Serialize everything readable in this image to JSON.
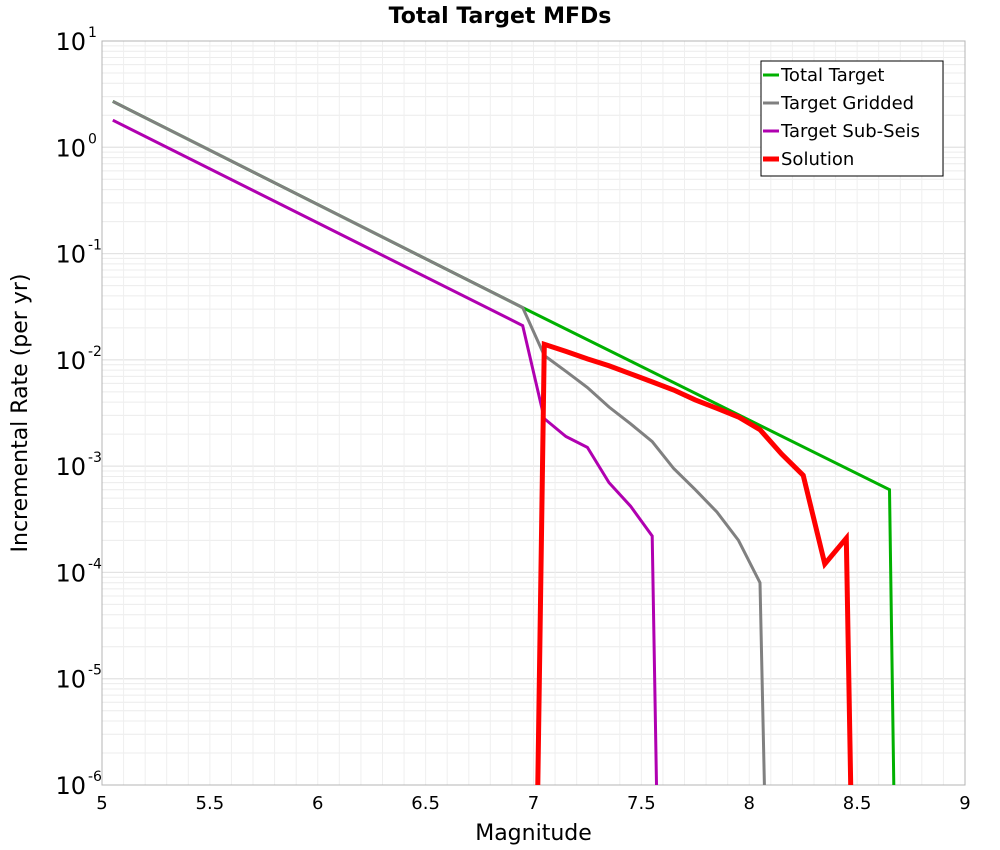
{
  "chart_data": {
    "type": "line",
    "title": "Total Target MFDs",
    "xlabel": "Magnitude",
    "ylabel": "Incremental Rate (per yr)",
    "xlim": [
      5,
      9
    ],
    "ylim": [
      1e-06,
      10
    ],
    "yscale": "log",
    "grid": true,
    "legend_position": "top-right",
    "xticks": [
      "5",
      "5.5",
      "6",
      "6.5",
      "7",
      "7.5",
      "8",
      "8.5",
      "9"
    ],
    "yticks": [
      {
        "base": "10",
        "exp": "1"
      },
      {
        "base": "10",
        "exp": "0"
      },
      {
        "base": "10",
        "exp": "-1"
      },
      {
        "base": "10",
        "exp": "-2"
      },
      {
        "base": "10",
        "exp": "-3"
      },
      {
        "base": "10",
        "exp": "-4"
      },
      {
        "base": "10",
        "exp": "-5"
      },
      {
        "base": "10",
        "exp": "-6"
      }
    ],
    "series": [
      {
        "name": "Total Target",
        "color": "#00b000",
        "points": [
          [
            5.05,
            2.7
          ],
          [
            6.95,
            0.031
          ],
          [
            8.65,
            0.0006
          ],
          [
            8.67,
            1e-06
          ]
        ]
      },
      {
        "name": "Target Gridded",
        "color": "#808080",
        "points": [
          [
            5.05,
            2.7
          ],
          [
            6.95,
            0.031
          ],
          [
            7.05,
            0.011
          ],
          [
            7.15,
            0.0078
          ],
          [
            7.25,
            0.0055
          ],
          [
            7.35,
            0.0036
          ],
          [
            7.45,
            0.0025
          ],
          [
            7.55,
            0.0017
          ],
          [
            7.65,
            0.00095
          ],
          [
            7.75,
            0.0006
          ],
          [
            7.85,
            0.00037
          ],
          [
            7.95,
            0.0002
          ],
          [
            8.05,
            8e-05
          ],
          [
            8.07,
            1e-06
          ]
        ]
      },
      {
        "name": "Target Sub-Seis",
        "color": "#b000b0",
        "points": [
          [
            5.05,
            1.8
          ],
          [
            6.95,
            0.021
          ],
          [
            7.05,
            0.0028
          ],
          [
            7.15,
            0.0019
          ],
          [
            7.25,
            0.0015
          ],
          [
            7.35,
            0.0007
          ],
          [
            7.45,
            0.00042
          ],
          [
            7.55,
            0.00022
          ],
          [
            7.57,
            1e-06
          ]
        ]
      },
      {
        "name": "Solution",
        "color": "#ff0000",
        "points": [
          [
            7.02,
            1e-06
          ],
          [
            7.05,
            0.014
          ],
          [
            7.15,
            0.012
          ],
          [
            7.25,
            0.0102
          ],
          [
            7.35,
            0.0088
          ],
          [
            7.45,
            0.0074
          ],
          [
            7.55,
            0.0062
          ],
          [
            7.65,
            0.0052
          ],
          [
            7.75,
            0.0042
          ],
          [
            7.85,
            0.0035
          ],
          [
            7.95,
            0.0029
          ],
          [
            8.05,
            0.0022
          ],
          [
            8.15,
            0.0013
          ],
          [
            8.25,
            0.00082
          ],
          [
            8.35,
            0.00012
          ],
          [
            8.45,
            0.00021
          ],
          [
            8.47,
            1e-06
          ]
        ]
      }
    ]
  }
}
